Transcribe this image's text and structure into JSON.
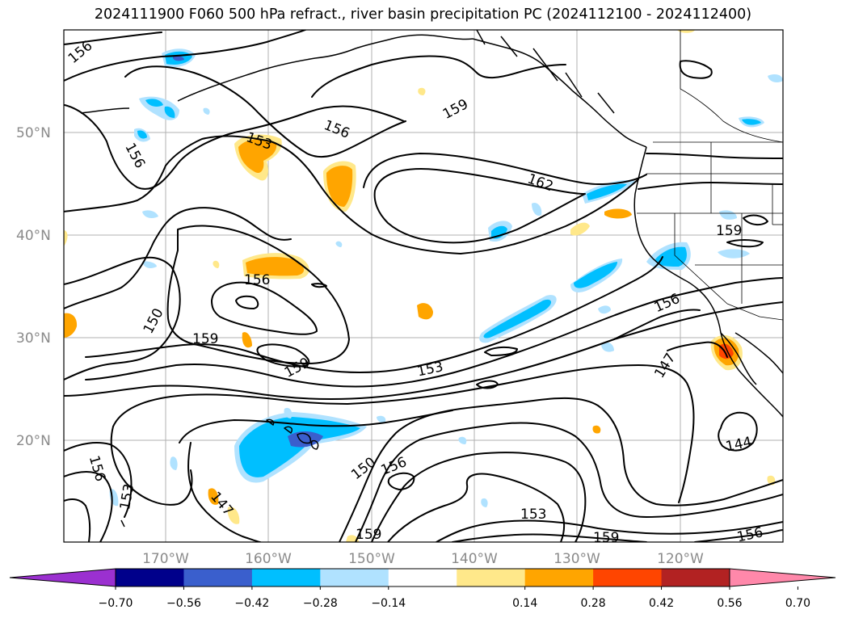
{
  "title": "2024111900 F060 500 hPa refract., river basin precipitation PC (2024112100 - 2024112400)",
  "map": {
    "lat_labels": [
      "50°N",
      "40°N",
      "30°N",
      "20°N"
    ],
    "lon_labels": [
      "170°W",
      "160°W",
      "150°W",
      "140°W",
      "130°W",
      "120°W"
    ],
    "contour_labels": [
      "156",
      "156",
      "156",
      "153",
      "162",
      "159",
      "159",
      "156",
      "150",
      "159",
      "159",
      "153",
      "156",
      "147",
      "150",
      "156",
      "147",
      "153",
      "159",
      "153",
      "159",
      "156",
      "144",
      "156"
    ]
  },
  "colorbar": {
    "tick_labels": [
      "−0.70",
      "−0.56",
      "−0.42",
      "−0.28",
      "−0.14",
      "0.14",
      "0.28",
      "0.42",
      "0.56",
      "0.70"
    ],
    "colors": [
      "#9b30d0",
      "#00008b",
      "#3a5fcd",
      "#00bfff",
      "#b0e2ff",
      "#ffffff",
      "#ffe88a",
      "#ffa500",
      "#ff4500",
      "#b22222",
      "#ff88aa"
    ]
  }
}
